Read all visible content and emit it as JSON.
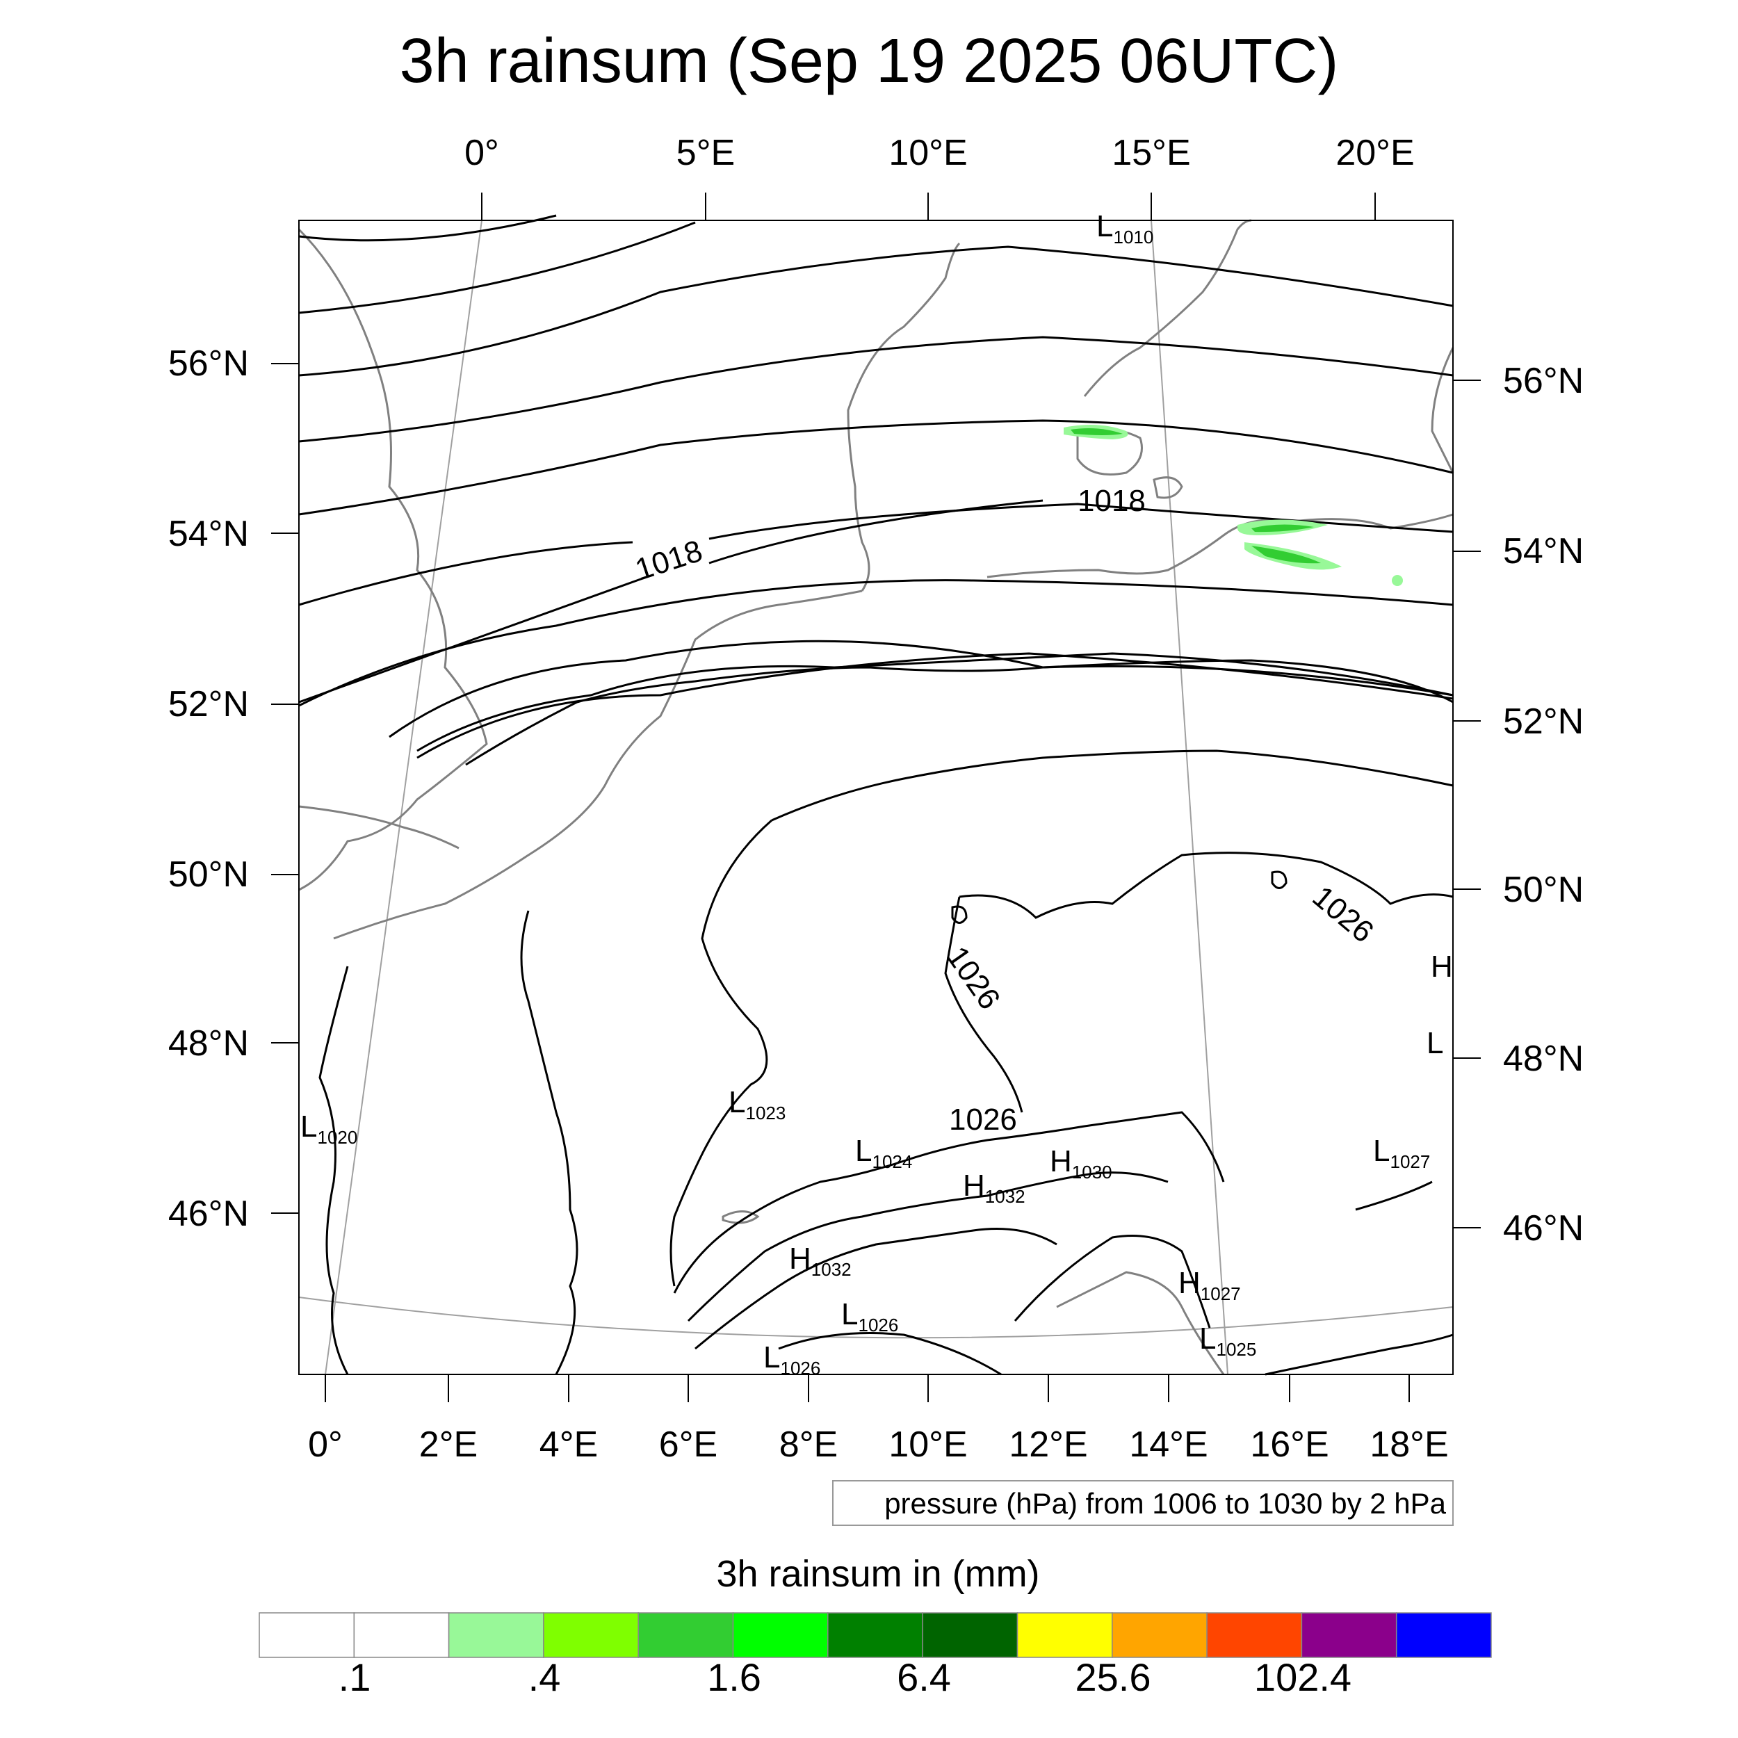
{
  "map": {
    "title": "3h rainsum (Sep 19 2025 06UTC)",
    "top_lon_labels": [
      "0°",
      "5°E",
      "10°E",
      "15°E",
      "20°E"
    ],
    "bottom_lon_labels": [
      "0°",
      "2°E",
      "4°E",
      "6°E",
      "8°E",
      "10°E",
      "12°E",
      "14°E",
      "16°E",
      "18°E"
    ],
    "left_lat_labels": [
      "56°N",
      "54°N",
      "52°N",
      "50°N",
      "48°N",
      "46°N"
    ],
    "right_lat_labels": [
      "56°N",
      "54°N",
      "52°N",
      "50°N",
      "48°N",
      "46°N"
    ],
    "contour_labels": [
      "1018",
      "1018",
      "1026",
      "1026",
      "1026"
    ],
    "pressure_centers": [
      {
        "letter": "L",
        "value": "1010"
      },
      {
        "letter": "L",
        "value": "1020"
      },
      {
        "letter": "L",
        "value": "1023"
      },
      {
        "letter": "L",
        "value": "1024"
      },
      {
        "letter": "H",
        "value": "1032"
      },
      {
        "letter": "H",
        "value": "1030"
      },
      {
        "letter": "H",
        "value": "1032"
      },
      {
        "letter": "L",
        "value": "1026"
      },
      {
        "letter": "L",
        "value": "1026"
      },
      {
        "letter": "H",
        "value": "1027"
      },
      {
        "letter": "L",
        "value": "1025"
      },
      {
        "letter": "L",
        "value": "1027"
      },
      {
        "letter": "H",
        "value": ""
      },
      {
        "letter": "L",
        "value": ""
      }
    ],
    "contour_info": "pressure (hPa) from 1006 to 1030 by 2 hPa",
    "colors": {
      "isobar": "#000000",
      "coastline": "#808080",
      "graticule": "#a0a0a0",
      "rain_light": "#98f898",
      "rain_mid": "#32cd32",
      "rain_bright": "#7cfc00"
    }
  },
  "colorbar": {
    "title": "3h rainsum in (mm)",
    "colors": [
      "#ffffff",
      "#ffffff",
      "#98f898",
      "#7fff00",
      "#32cd32",
      "#00ff00",
      "#008000",
      "#006400",
      "#ffff00",
      "#ffa500",
      "#ff4500",
      "#8b008b",
      "#0000ff"
    ],
    "labels": [
      ".1",
      ".4",
      "1.6",
      "6.4",
      "25.6",
      "102.4"
    ]
  }
}
